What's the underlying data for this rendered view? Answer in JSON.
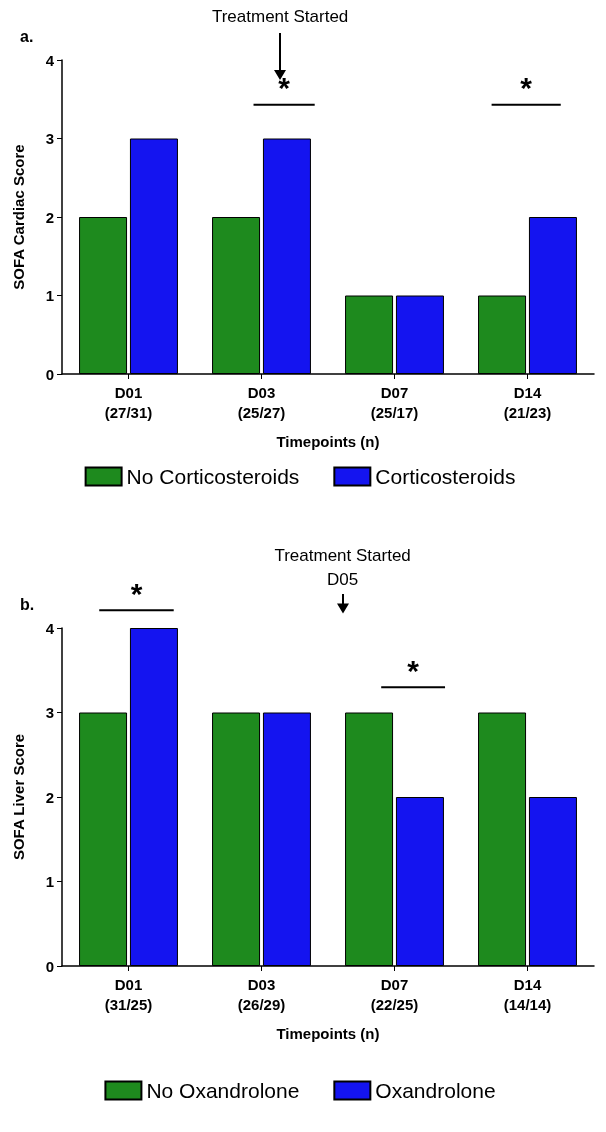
{
  "chart_data": [
    {
      "type": "bar",
      "categories": [
        "D01\n(27/31)",
        "D03\n(25/27)",
        "D07\n(25/17)",
        "D14\n(21/23)"
      ],
      "series": [
        {
          "name": "No Corticosteroids",
          "color": "#1e8a1e",
          "values": [
            2,
            2,
            1,
            1
          ]
        },
        {
          "name": "Corticosteroids",
          "color": "#1414f0",
          "values": [
            3,
            3,
            1,
            2
          ]
        }
      ],
      "xlabel": "Timepoints (n)",
      "ylabel": "SOFA Cardiac Score",
      "ylim": [
        0,
        4
      ],
      "yticks": [
        0,
        1,
        2,
        3,
        4
      ],
      "grid": false,
      "legend": "bottom",
      "annotations": [
        "a.",
        "Treatment Started",
        "*",
        "*"
      ]
    },
    {
      "type": "bar",
      "categories": [
        "D01\n(31/25)",
        "D03\n(26/29)",
        "D07\n(22/25)",
        "D14\n(14/14)"
      ],
      "series": [
        {
          "name": "No Oxandrolone",
          "color": "#1e8a1e",
          "values": [
            3,
            3,
            3,
            3
          ]
        },
        {
          "name": "Oxandrolone",
          "color": "#1414f0",
          "values": [
            4,
            3,
            2,
            2
          ]
        }
      ],
      "xlabel": "Timepoints (n)",
      "ylabel": "SOFA Liver Score",
      "ylim": [
        0,
        4
      ],
      "yticks": [
        0,
        1,
        2,
        3,
        4
      ],
      "grid": false,
      "legend": "bottom",
      "annotations": [
        "b.",
        "Treatment Started\nD05",
        "*",
        "*"
      ]
    }
  ]
}
